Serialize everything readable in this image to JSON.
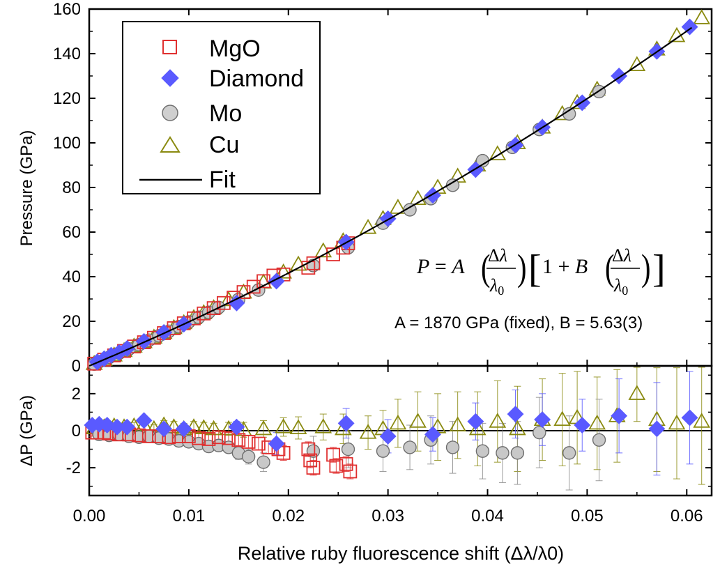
{
  "chart_data": [
    {
      "type": "scatter",
      "panel": "top",
      "ylabel": "Pressure (GPa)",
      "xlim": [
        0.0,
        0.0625
      ],
      "ylim": [
        0,
        160
      ],
      "xticks": [
        "0.00",
        "0.01",
        "0.02",
        "0.03",
        "0.04",
        "0.05",
        "0.06"
      ],
      "yticks": [
        "0",
        "20",
        "40",
        "60",
        "80",
        "100",
        "120",
        "140",
        "160"
      ],
      "ytick_values": [
        0,
        20,
        40,
        60,
        80,
        100,
        120,
        140,
        160
      ],
      "grid": false,
      "legend_position": "top-left",
      "legend": [
        "MgO",
        "Diamond",
        "Mo",
        "Cu",
        "Fit"
      ],
      "equation_line1": "P = A (Δλ/λ0) [1 + B (Δλ/λ0)]",
      "equation_line2": "A = 1870 GPa (fixed), B = 5.63(3)",
      "fit": {
        "A": 1870,
        "B": 5.63
      },
      "series": [
        {
          "name": "MgO",
          "marker": "open-square",
          "color": "#e03030",
          "x": [
            0.0005,
            0.0015,
            0.0025,
            0.0035,
            0.0045,
            0.0055,
            0.0065,
            0.0075,
            0.0085,
            0.0095,
            0.0105,
            0.0115,
            0.0125,
            0.0135,
            0.0145,
            0.0155,
            0.0165,
            0.0175,
            0.0185,
            0.0195,
            0.022,
            0.0225,
            0.0245,
            0.0255,
            0.026
          ],
          "y": [
            1,
            2.8,
            4.7,
            6.7,
            8.7,
            10.6,
            12.6,
            14.7,
            16.9,
            19.1,
            21.3,
            23.5,
            25.9,
            28.2,
            30.6,
            33.1,
            35.5,
            38,
            40.5,
            41,
            44,
            46,
            50,
            53,
            55
          ]
        },
        {
          "name": "Diamond",
          "marker": "filled-diamond",
          "color": "#5a5aff",
          "x": [
            0.0008,
            0.0015,
            0.0022,
            0.003,
            0.0038,
            0.0055,
            0.0075,
            0.0095,
            0.0148,
            0.0188,
            0.0258,
            0.03,
            0.0345,
            0.0388,
            0.0428,
            0.0455,
            0.0495,
            0.0532,
            0.057,
            0.0603
          ],
          "y": [
            1.8,
            3.2,
            4.8,
            6,
            7.8,
            11,
            15,
            18.7,
            28.2,
            38,
            55.5,
            66,
            76.5,
            88,
            99,
            107,
            118,
            130,
            141,
            152
          ]
        },
        {
          "name": "Mo",
          "marker": "filled-circle",
          "color": "#b8b8b8",
          "x": [
            0.0005,
            0.001,
            0.002,
            0.003,
            0.004,
            0.005,
            0.006,
            0.007,
            0.008,
            0.009,
            0.01,
            0.011,
            0.012,
            0.013,
            0.015,
            0.017,
            0.0225,
            0.026,
            0.0295,
            0.0322,
            0.0343,
            0.0365,
            0.0395,
            0.0425,
            0.0452,
            0.0482,
            0.0512
          ],
          "y": [
            0.8,
            1.9,
            3.8,
            5.7,
            7.6,
            9.5,
            11.5,
            13.5,
            15.5,
            17.6,
            19.7,
            21.8,
            24,
            26.2,
            29.8,
            34,
            45,
            53,
            64,
            70,
            75,
            81,
            92,
            98,
            106,
            113,
            123
          ]
        },
        {
          "name": "Cu",
          "marker": "open-triangle",
          "color": "#8a8a10",
          "x": [
            0.0005,
            0.0015,
            0.0025,
            0.0035,
            0.0045,
            0.0055,
            0.0065,
            0.0075,
            0.0085,
            0.0095,
            0.0105,
            0.0115,
            0.0125,
            0.014,
            0.0155,
            0.0175,
            0.0195,
            0.021,
            0.0235,
            0.0255,
            0.028,
            0.0295,
            0.031,
            0.033,
            0.035,
            0.037,
            0.039,
            0.041,
            0.043,
            0.0455,
            0.0475,
            0.049,
            0.051,
            0.055,
            0.057,
            0.059,
            0.0615
          ],
          "y": [
            1,
            2.9,
            4.8,
            6.8,
            8.8,
            10.8,
            12.8,
            14.9,
            17.1,
            19.3,
            21.6,
            23.8,
            26,
            29.6,
            33,
            37.5,
            42,
            45.5,
            51.5,
            56,
            62,
            66,
            71,
            75,
            80,
            85,
            90,
            95,
            100,
            107,
            113,
            118,
            124,
            135,
            142,
            148,
            156
          ]
        }
      ]
    },
    {
      "type": "scatter",
      "panel": "bottom",
      "ylabel": "ΔP (GPa)",
      "xlabel": "Relative ruby fluorescence shift (Δλ/λ0)",
      "xlim": [
        0.0,
        0.0625
      ],
      "ylim": [
        -3.5,
        3.5
      ],
      "yticks": [
        "-2",
        "0",
        "2"
      ],
      "ytick_values": [
        -2,
        0,
        2
      ],
      "zero_line": true,
      "series": [
        {
          "name": "MgO",
          "marker": "open-square",
          "color": "#e03030",
          "x": [
            0.0003,
            0.0008,
            0.0015,
            0.002,
            0.003,
            0.004,
            0.005,
            0.006,
            0.007,
            0.008,
            0.009,
            0.01,
            0.011,
            0.012,
            0.013,
            0.014,
            0.015,
            0.016,
            0.017,
            0.018,
            0.019,
            0.0195,
            0.022,
            0.0222,
            0.0225,
            0.0245,
            0.0248,
            0.0258,
            0.0262
          ],
          "y": [
            -0.1,
            -0.1,
            -0.1,
            -0.15,
            -0.2,
            -0.2,
            -0.25,
            -0.3,
            -0.3,
            -0.35,
            -0.3,
            -0.3,
            -0.4,
            -0.45,
            -0.35,
            -0.4,
            -0.5,
            -0.6,
            -0.7,
            -0.9,
            -1,
            -1.2,
            -1,
            -1.6,
            -2,
            -1.3,
            -1.9,
            -1.8,
            -2.2
          ],
          "err": [
            0.2,
            0.2,
            0.2,
            0.2,
            0.2,
            0.2,
            0.25,
            0.25,
            0.25,
            0.25,
            0.3,
            0.3,
            0.3,
            0.3,
            0.3,
            0.3,
            0.3,
            0.35,
            0.35,
            0.35,
            0.35,
            0.4,
            0.4,
            0.4,
            0.4,
            0.4,
            0.4,
            0.4,
            0.4
          ]
        },
        {
          "name": "Diamond",
          "marker": "filled-diamond",
          "color": "#5a5aff",
          "x": [
            0.0003,
            0.001,
            0.0018,
            0.0028,
            0.0038,
            0.0055,
            0.0075,
            0.0095,
            0.0148,
            0.0188,
            0.0258,
            0.03,
            0.0345,
            0.0388,
            0.0428,
            0.0455,
            0.0495,
            0.0532,
            0.057,
            0.0603
          ],
          "y": [
            0.3,
            0.35,
            0.3,
            0.2,
            0.2,
            0.55,
            0.1,
            0.1,
            0.2,
            -0.7,
            0.4,
            -0.3,
            -0.2,
            0.5,
            0.9,
            0.6,
            0.3,
            0.8,
            0.1,
            0.7
          ],
          "err": [
            0.15,
            0.15,
            0.15,
            0.15,
            0.15,
            0.15,
            0.2,
            0.2,
            0.3,
            0.6,
            0.8,
            0.9,
            0.9,
            1.0,
            1.3,
            1.4,
            1.4,
            2.0,
            2.5,
            2.5
          ]
        },
        {
          "name": "Mo",
          "marker": "filled-circle",
          "color": "#b8b8b8",
          "x": [
            0.001,
            0.002,
            0.003,
            0.004,
            0.005,
            0.006,
            0.007,
            0.008,
            0.009,
            0.01,
            0.011,
            0.012,
            0.013,
            0.014,
            0.015,
            0.016,
            0.0175,
            0.0225,
            0.026,
            0.0295,
            0.0322,
            0.0343,
            0.0365,
            0.0395,
            0.0415,
            0.043,
            0.0452,
            0.0482,
            0.0512
          ],
          "y": [
            -0.2,
            -0.25,
            -0.2,
            -0.3,
            -0.35,
            -0.3,
            -0.4,
            -0.45,
            -0.55,
            -0.6,
            -0.7,
            -0.85,
            -0.8,
            -0.9,
            -1.2,
            -1.4,
            -1.7,
            -1.1,
            -1,
            -1.1,
            -0.9,
            -0.5,
            -0.9,
            -1.1,
            -1.2,
            -1.2,
            -0.1,
            -1.2,
            -0.5
          ],
          "err": [
            0.15,
            0.15,
            0.15,
            0.2,
            0.2,
            0.2,
            0.2,
            0.25,
            0.25,
            0.25,
            0.3,
            0.3,
            0.3,
            0.3,
            0.35,
            0.4,
            0.5,
            0.8,
            1.0,
            1.1,
            1.2,
            1.3,
            1.4,
            1.5,
            1.6,
            1.7,
            1.9,
            2.0,
            2.2
          ]
        },
        {
          "name": "Cu",
          "marker": "open-triangle",
          "color": "#8a8a10",
          "x": [
            0.0005,
            0.0015,
            0.0025,
            0.0035,
            0.0045,
            0.0055,
            0.0065,
            0.0075,
            0.0085,
            0.0095,
            0.0105,
            0.0115,
            0.0125,
            0.014,
            0.0155,
            0.0175,
            0.0195,
            0.021,
            0.0235,
            0.0255,
            0.028,
            0.0295,
            0.031,
            0.033,
            0.035,
            0.037,
            0.039,
            0.041,
            0.043,
            0.0455,
            0.0475,
            0.049,
            0.051,
            0.053,
            0.055,
            0.057,
            0.059,
            0.0615
          ],
          "y": [
            0.15,
            0.2,
            0.25,
            0.2,
            0.25,
            0.3,
            0.1,
            0.3,
            0.2,
            0.1,
            0.2,
            0.15,
            0.1,
            0.1,
            0.05,
            0.1,
            0.2,
            0.15,
            0.2,
            0.1,
            -0.1,
            0.1,
            0.4,
            0.5,
            0.2,
            0.3,
            0.1,
            0.5,
            0.1,
            0.6,
            0.6,
            0.7,
            0.4,
            0.8,
            2.0,
            0.6,
            0.4,
            0.5
          ],
          "err": [
            0.2,
            0.2,
            0.2,
            0.2,
            0.2,
            0.25,
            0.25,
            0.25,
            0.3,
            0.3,
            0.3,
            0.3,
            0.3,
            0.35,
            0.4,
            0.45,
            0.5,
            0.6,
            0.7,
            0.8,
            0.9,
            1.0,
            1.3,
            1.6,
            1.8,
            1.8,
            2.0,
            2.2,
            2.3,
            2.2,
            2.5,
            2.5,
            2.5,
            2.5,
            1.5,
            2.8,
            3.0,
            3.4
          ]
        }
      ]
    }
  ]
}
